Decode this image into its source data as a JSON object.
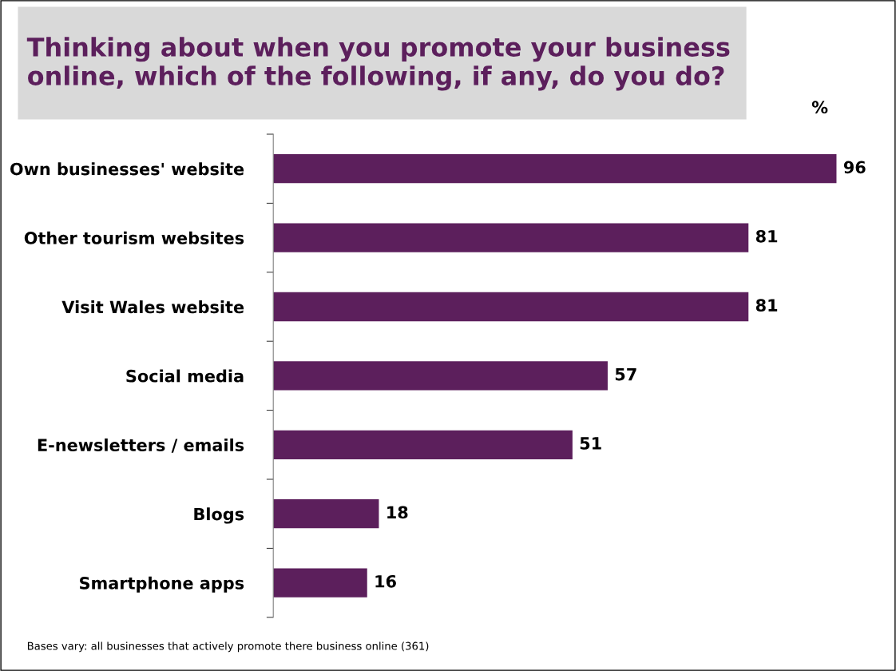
{
  "chart_data": {
    "type": "bar",
    "orientation": "horizontal",
    "title": "Thinking about when you promote your business online, which of the following, if any, do you do?",
    "categories": [
      "Own businesses' website",
      "Other tourism websites",
      "Visit Wales website",
      "Social media",
      "E-newsletters / emails",
      "Blogs",
      "Smartphone apps"
    ],
    "values": [
      96,
      81,
      81,
      57,
      51,
      18,
      16
    ],
    "color": "#5c1f5c",
    "tick_labels": "y",
    "data_labels": true,
    "grid": false,
    "legend": false,
    "annotations": [
      "%",
      "Bases vary: all businesses that actively promote there business online (361)"
    ]
  }
}
